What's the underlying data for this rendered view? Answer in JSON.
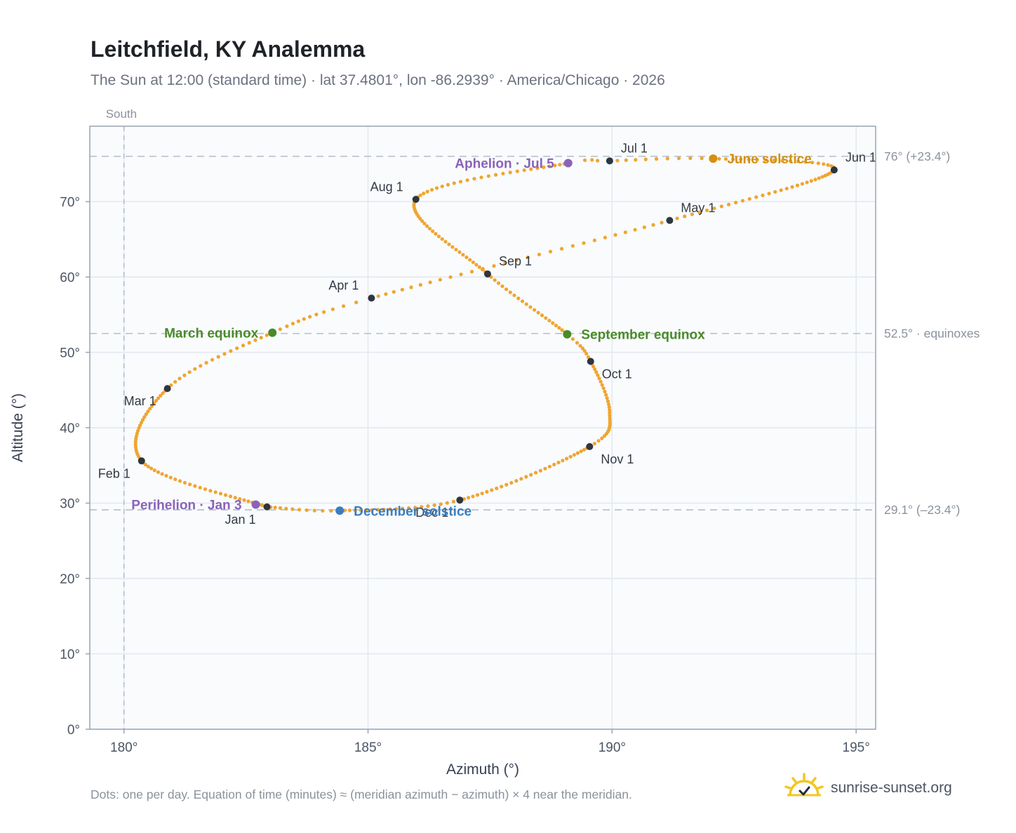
{
  "header": {
    "title": "Leitchfield, KY Analemma",
    "subtitle": "The Sun at 12:00 (standard time) · lat 37.4801°, lon -86.2939° · America/Chicago · 2026"
  },
  "footer": {
    "note": "Dots: one per day. Equation of time (minutes) ≈ (meridian azimuth − azimuth) × 4 near the meridian.",
    "brand": "sunrise-sunset.org",
    "brand_icon": "sun-check-icon"
  },
  "chart_data": {
    "type": "scatter",
    "xlabel": "Azimuth (°)",
    "ylabel": "Altitude (°)",
    "xlim": [
      179.3,
      195.4
    ],
    "ylim": [
      0,
      80
    ],
    "xticks": [
      180,
      185,
      190,
      195
    ],
    "yticks": [
      0,
      10,
      20,
      30,
      40,
      50,
      60,
      70
    ],
    "tick_suffix": "°",
    "grid": true,
    "meridian": {
      "x": 180,
      "label": "South"
    },
    "reference_lines": [
      {
        "y": 76.0,
        "label": "76° (+23.4°)"
      },
      {
        "y": 52.5,
        "label": "52.5° · equinoxes"
      },
      {
        "y": 29.1,
        "label": "29.1° (–23.4°)"
      }
    ],
    "series": [
      {
        "dot_color": "#f0a530",
        "keyframes": [
          {
            "day": 0,
            "x": 182.93,
            "y": 29.5
          },
          {
            "day": 31,
            "x": 180.36,
            "y": 35.6
          },
          {
            "day": 59,
            "x": 180.89,
            "y": 45.2
          },
          {
            "day": 78,
            "x": 183.04,
            "y": 52.6
          },
          {
            "day": 90,
            "x": 185.07,
            "y": 57.2
          },
          {
            "day": 120,
            "x": 191.18,
            "y": 67.5
          },
          {
            "day": 151,
            "x": 194.55,
            "y": 74.2
          },
          {
            "day": 171,
            "x": 192.07,
            "y": 75.7
          },
          {
            "day": 181,
            "x": 189.95,
            "y": 75.4
          },
          {
            "day": 185,
            "x": 189.1,
            "y": 75.1
          },
          {
            "day": 212,
            "x": 185.98,
            "y": 70.3
          },
          {
            "day": 243,
            "x": 187.45,
            "y": 60.4
          },
          {
            "day": 265,
            "x": 189.08,
            "y": 52.4
          },
          {
            "day": 273,
            "x": 189.56,
            "y": 48.8
          },
          {
            "day": 290,
            "x": 189.95,
            "y": 42.0
          },
          {
            "day": 304,
            "x": 189.54,
            "y": 37.5
          },
          {
            "day": 334,
            "x": 186.88,
            "y": 30.4
          },
          {
            "day": 354,
            "x": 184.42,
            "y": 29.0
          },
          {
            "day": 365,
            "x": 182.93,
            "y": 29.5
          }
        ]
      }
    ],
    "month_markers": [
      {
        "label": "Jan 1",
        "x": 182.93,
        "y": 29.5,
        "anchor": "below-left"
      },
      {
        "label": "Feb 1",
        "x": 180.36,
        "y": 35.6,
        "anchor": "below-left"
      },
      {
        "label": "Mar 1",
        "x": 180.89,
        "y": 45.2,
        "anchor": "below-left"
      },
      {
        "label": "Apr 1",
        "x": 185.07,
        "y": 57.2,
        "anchor": "above-left"
      },
      {
        "label": "May 1",
        "x": 191.18,
        "y": 67.5,
        "anchor": "above-right"
      },
      {
        "label": "Jun 1",
        "x": 194.55,
        "y": 74.2,
        "anchor": "above-right"
      },
      {
        "label": "Jul 1",
        "x": 189.95,
        "y": 75.4,
        "anchor": "above-right"
      },
      {
        "label": "Aug 1",
        "x": 185.98,
        "y": 70.3,
        "anchor": "above-left"
      },
      {
        "label": "Sep 1",
        "x": 187.45,
        "y": 60.4,
        "anchor": "right"
      },
      {
        "label": "Oct 1",
        "x": 189.56,
        "y": 48.8,
        "anchor": "below-right"
      },
      {
        "label": "Nov 1",
        "x": 189.54,
        "y": 37.5,
        "anchor": "below-right"
      },
      {
        "label": "Dec 1",
        "x": 186.88,
        "y": 30.4,
        "anchor": "below-left"
      }
    ],
    "events": [
      {
        "label": "June solstice",
        "x": 192.07,
        "y": 75.7,
        "color": "#d4900e",
        "side": "right"
      },
      {
        "label": "Aphelion · Jul 5",
        "x": 189.1,
        "y": 75.1,
        "color": "#8a63b8",
        "side": "left"
      },
      {
        "label": "March equinox",
        "x": 183.04,
        "y": 52.6,
        "color": "#4a8a2a",
        "side": "left"
      },
      {
        "label": "September equinox",
        "x": 189.08,
        "y": 52.4,
        "color": "#4a8a2a",
        "side": "right"
      },
      {
        "label": "Perihelion · Jan 3",
        "x": 182.7,
        "y": 29.8,
        "color": "#8a63b8",
        "side": "left"
      },
      {
        "label": "December solstice",
        "x": 184.42,
        "y": 29.0,
        "color": "#3a7dbf",
        "side": "right"
      }
    ]
  }
}
